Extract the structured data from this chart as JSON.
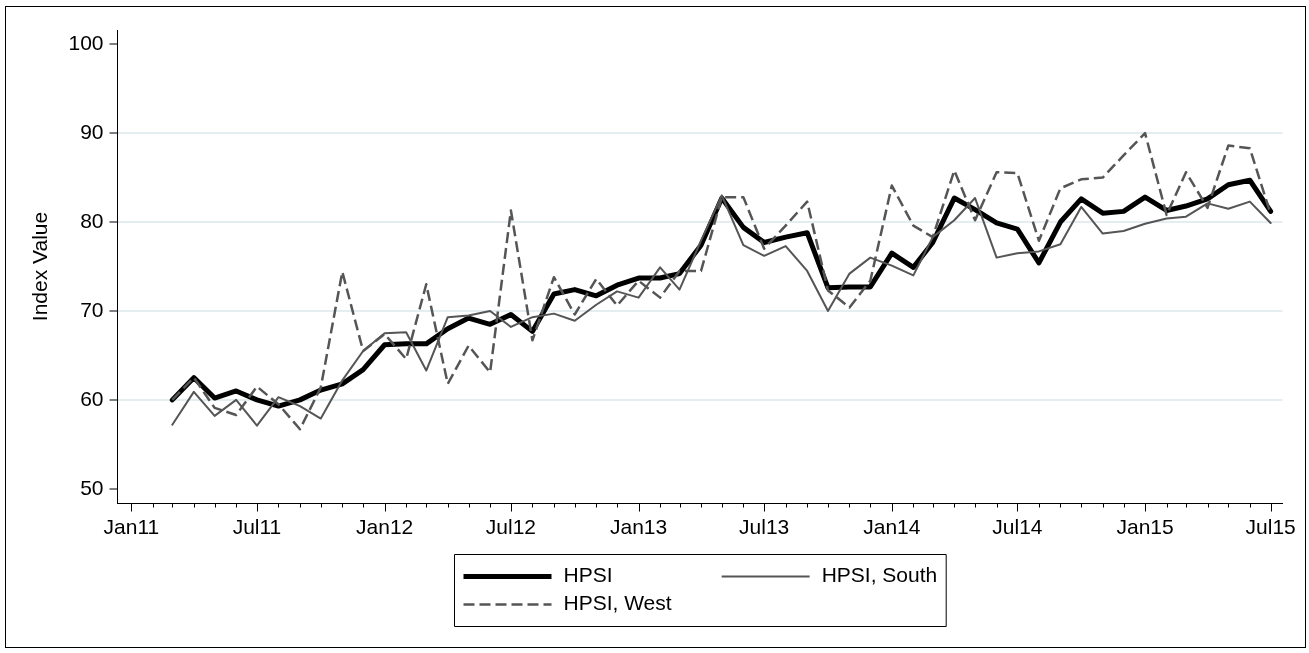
{
  "chart_data": {
    "type": "line",
    "ylabel": "Index Value",
    "x": [
      "2011-03",
      "2011-04",
      "2011-05",
      "2011-06",
      "2011-07",
      "2011-08",
      "2011-09",
      "2011-10",
      "2011-11",
      "2011-12",
      "2012-01",
      "2012-02",
      "2012-03",
      "2012-04",
      "2012-05",
      "2012-06",
      "2012-07",
      "2012-08",
      "2012-09",
      "2012-10",
      "2012-11",
      "2012-12",
      "2013-01",
      "2013-02",
      "2013-03",
      "2013-04",
      "2013-05",
      "2013-06",
      "2013-07",
      "2013-08",
      "2013-09",
      "2013-10",
      "2013-11",
      "2013-12",
      "2014-01",
      "2014-02",
      "2014-03",
      "2014-04",
      "2014-05",
      "2014-06",
      "2014-07",
      "2014-08",
      "2014-09",
      "2014-10",
      "2014-11",
      "2014-12",
      "2015-01",
      "2015-02",
      "2015-03",
      "2015-04",
      "2015-05",
      "2015-06",
      "2015-07"
    ],
    "series": [
      {
        "name": "HPSI",
        "color": "#000000",
        "line_style": "solid",
        "values": [
          60.0,
          62.5,
          60.2,
          61.0,
          60.0,
          59.3,
          60.0,
          61.1,
          61.8,
          63.4,
          66.2,
          66.3,
          66.3,
          68.0,
          69.2,
          68.5,
          69.6,
          67.7,
          71.9,
          72.4,
          71.7,
          72.9,
          73.7,
          73.7,
          74.2,
          77.4,
          82.7,
          79.4,
          77.7,
          78.3,
          78.8,
          72.6,
          72.7,
          72.7,
          76.5,
          74.9,
          77.7,
          82.7,
          81.4,
          79.9,
          79.2,
          75.4,
          80.0,
          82.6,
          81.0,
          81.2,
          82.8,
          81.3,
          81.8,
          82.6,
          84.2,
          84.7,
          81.2
        ]
      },
      {
        "name": "HPSI, South",
        "color": "#555555",
        "line_style": "solid",
        "values": [
          57.2,
          60.9,
          58.2,
          60.0,
          57.1,
          60.3,
          59.3,
          57.9,
          62.2,
          65.5,
          67.5,
          67.6,
          63.3,
          69.3,
          69.5,
          70.0,
          68.2,
          69.3,
          69.7,
          68.9,
          70.7,
          72.2,
          71.5,
          74.9,
          72.4,
          77.9,
          83.0,
          77.4,
          76.2,
          77.3,
          74.5,
          70.0,
          74.2,
          76.0,
          75.1,
          74.0,
          78.3,
          80.2,
          82.7,
          76.0,
          76.5,
          76.7,
          77.5,
          81.7,
          78.7,
          79.0,
          79.8,
          80.4,
          80.6,
          82.1,
          81.5,
          82.3,
          79.9
        ]
      },
      {
        "name": "HPSI, West",
        "color": "#555555",
        "line_style": "dashed",
        "values": [
          60.0,
          62.5,
          59.1,
          58.3,
          61.5,
          59.5,
          56.7,
          61.4,
          74.4,
          65.5,
          67.4,
          64.6,
          73.0,
          61.8,
          66.1,
          63.1,
          81.3,
          66.7,
          73.8,
          69.6,
          73.6,
          70.6,
          73.4,
          71.5,
          74.5,
          74.5,
          82.8,
          82.8,
          77.0,
          79.6,
          82.3,
          72.3,
          70.4,
          73.4,
          84.1,
          79.6,
          78.3,
          85.8,
          80.2,
          85.6,
          85.5,
          77.9,
          83.8,
          84.8,
          85.0,
          87.5,
          90.0,
          80.8,
          85.6,
          81.6,
          88.6,
          88.3,
          80.9
        ]
      }
    ],
    "xlim": [
      "2010-12-12",
      "2015-07-18"
    ],
    "xticks": [
      {
        "value": "2011-01",
        "label": "Jan11"
      },
      {
        "value": "2011-02",
        "label": null
      },
      {
        "value": "2011-03",
        "label": null
      },
      {
        "value": "2011-04",
        "label": null
      },
      {
        "value": "2011-05",
        "label": null
      },
      {
        "value": "2011-06",
        "label": null
      },
      {
        "value": "2011-07",
        "label": "Jul11"
      },
      {
        "value": "2011-08",
        "label": null
      },
      {
        "value": "2011-09",
        "label": null
      },
      {
        "value": "2011-10",
        "label": null
      },
      {
        "value": "2011-11",
        "label": null
      },
      {
        "value": "2011-12",
        "label": null
      },
      {
        "value": "2012-01",
        "label": "Jan12"
      },
      {
        "value": "2012-02",
        "label": null
      },
      {
        "value": "2012-03",
        "label": null
      },
      {
        "value": "2012-04",
        "label": null
      },
      {
        "value": "2012-05",
        "label": null
      },
      {
        "value": "2012-06",
        "label": null
      },
      {
        "value": "2012-07",
        "label": "Jul12"
      },
      {
        "value": "2012-08",
        "label": null
      },
      {
        "value": "2012-09",
        "label": null
      },
      {
        "value": "2012-10",
        "label": null
      },
      {
        "value": "2012-11",
        "label": null
      },
      {
        "value": "2012-12",
        "label": null
      },
      {
        "value": "2013-01",
        "label": "Jan13"
      },
      {
        "value": "2013-02",
        "label": null
      },
      {
        "value": "2013-03",
        "label": null
      },
      {
        "value": "2013-04",
        "label": null
      },
      {
        "value": "2013-05",
        "label": null
      },
      {
        "value": "2013-06",
        "label": null
      },
      {
        "value": "2013-07",
        "label": "Jul13"
      },
      {
        "value": "2013-08",
        "label": null
      },
      {
        "value": "2013-09",
        "label": null
      },
      {
        "value": "2013-10",
        "label": null
      },
      {
        "value": "2013-11",
        "label": null
      },
      {
        "value": "2013-12",
        "label": null
      },
      {
        "value": "2014-01",
        "label": "Jan14"
      },
      {
        "value": "2014-02",
        "label": null
      },
      {
        "value": "2014-03",
        "label": null
      },
      {
        "value": "2014-04",
        "label": null
      },
      {
        "value": "2014-05",
        "label": null
      },
      {
        "value": "2014-06",
        "label": null
      },
      {
        "value": "2014-07",
        "label": "Jul14"
      },
      {
        "value": "2014-08",
        "label": null
      },
      {
        "value": "2014-09",
        "label": null
      },
      {
        "value": "2014-10",
        "label": null
      },
      {
        "value": "2014-11",
        "label": null
      },
      {
        "value": "2014-12",
        "label": null
      },
      {
        "value": "2015-01",
        "label": "Jan15"
      },
      {
        "value": "2015-02",
        "label": null
      },
      {
        "value": "2015-03",
        "label": null
      },
      {
        "value": "2015-04",
        "label": null
      },
      {
        "value": "2015-05",
        "label": null
      },
      {
        "value": "2015-06",
        "label": null
      },
      {
        "value": "2015-07",
        "label": "Jul15"
      }
    ],
    "ylim": [
      48.4,
      101.6
    ],
    "yticks": [
      50,
      60,
      70,
      80,
      90,
      100
    ],
    "grid": "y",
    "legend": "bottom",
    "marker": "none"
  }
}
